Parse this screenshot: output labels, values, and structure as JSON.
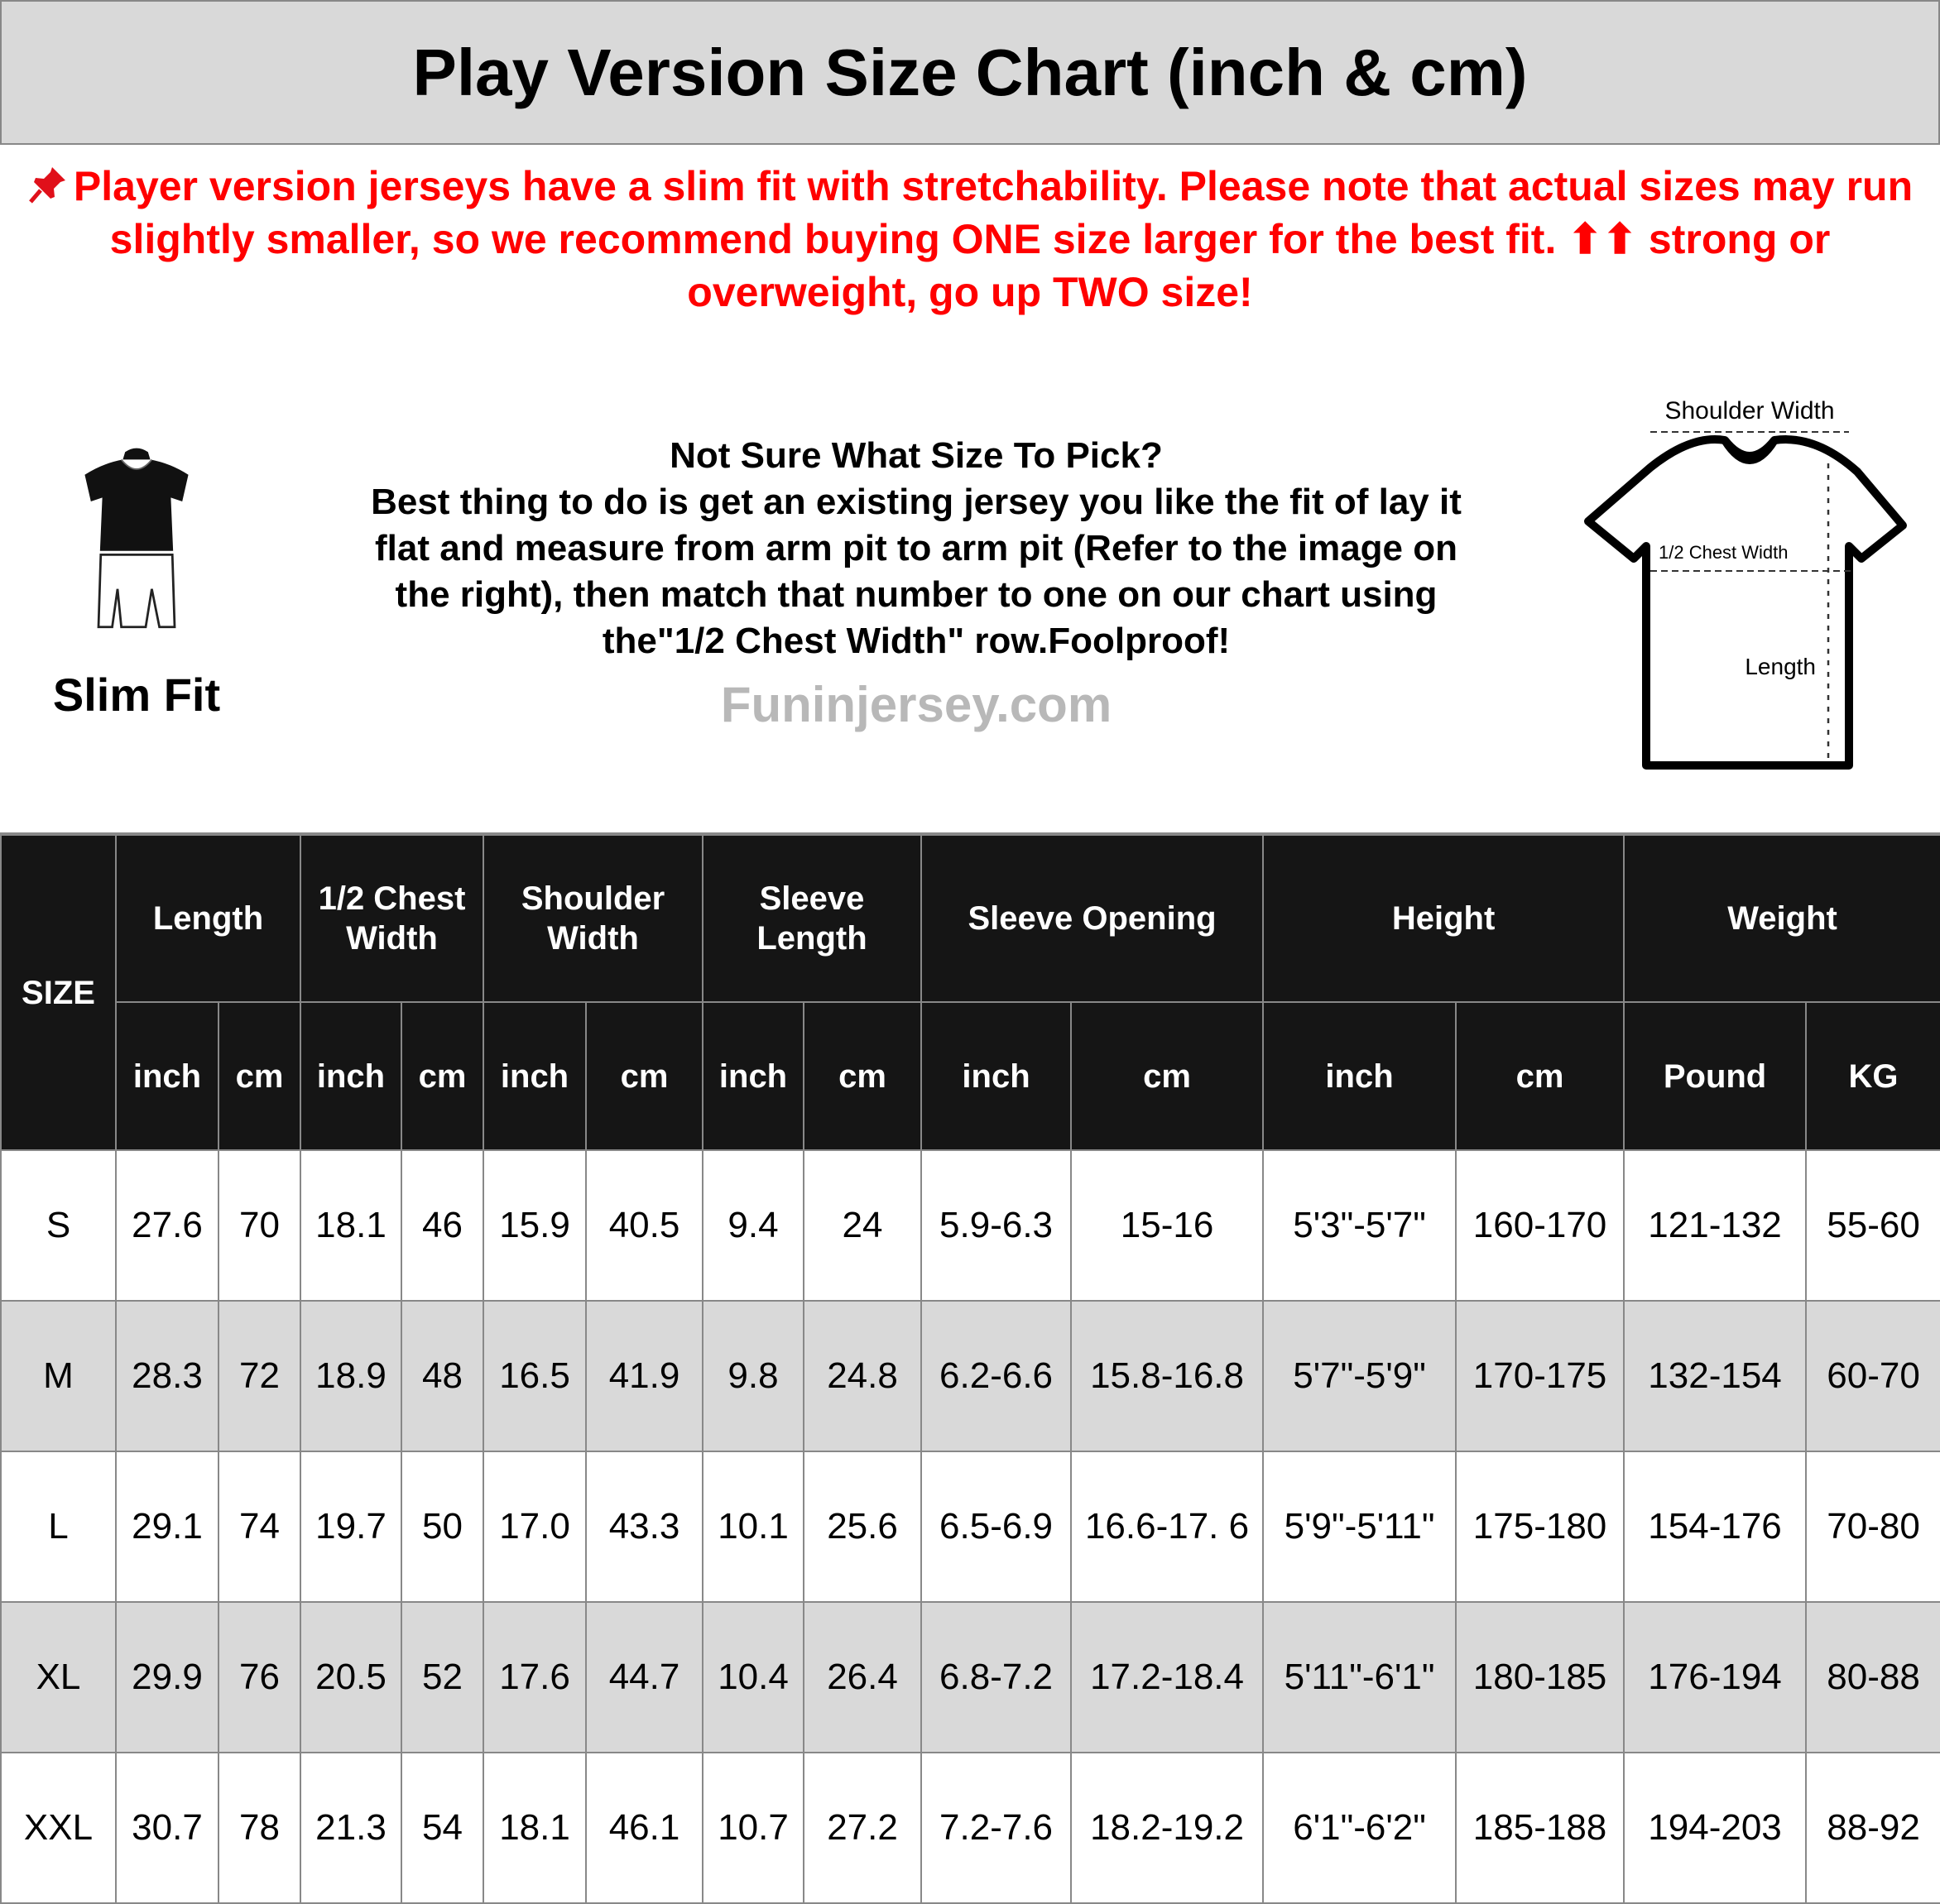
{
  "title": "Play Version Size Chart (inch & cm)",
  "notice": {
    "icon": "pushpin-icon",
    "color": "#ff0000",
    "lines": [
      "Player version jerseys have a slim fit with stretchability. Please note that actual sizes may run",
      "slightly smaller, so we recommend buying ONE size larger for the best fit. ⬆⬆ strong or overweight,",
      "go up TWO size!"
    ]
  },
  "fit_label": "Slim Fit",
  "guide": {
    "heading": "Not Sure What Size To Pick?",
    "lines": [
      "Best thing to do is get an existing jersey you like the fit of lay it",
      "flat and measure from arm pit to arm pit (Refer to the image on",
      "the right), then match that number to one on our chart using",
      "the\"1/2 Chest Width\" row.Foolproof!"
    ]
  },
  "diagram": {
    "shoulder": "Shoulder Width",
    "chest": "1/2 Chest Width",
    "length": "Length"
  },
  "watermark": "Funinjersey.com",
  "table": {
    "size_header": "SIZE",
    "groups": [
      "Length",
      "1/2 Chest Width",
      "Shoulder Width",
      "Sleeve Length",
      "Sleeve Opening",
      "Height",
      "Weight"
    ],
    "units": [
      "inch",
      "cm",
      "inch",
      "cm",
      "inch",
      "cm",
      "inch",
      "cm",
      "inch",
      "cm",
      "inch",
      "cm",
      "Pound",
      "KG"
    ],
    "rows": [
      [
        "S",
        "27.6",
        "70",
        "18.1",
        "46",
        "15.9",
        "40.5",
        "9.4",
        "24",
        "5.9-6.3",
        "15-16",
        "5'3\"-5'7\"",
        "160-170",
        "121-132",
        "55-60"
      ],
      [
        "M",
        "28.3",
        "72",
        "18.9",
        "48",
        "16.5",
        "41.9",
        "9.8",
        "24.8",
        "6.2-6.6",
        "15.8-16.8",
        "5'7\"-5'9\"",
        "170-175",
        "132-154",
        "60-70"
      ],
      [
        "L",
        "29.1",
        "74",
        "19.7",
        "50",
        "17.0",
        "43.3",
        "10.1",
        "25.6",
        "6.5-6.9",
        "16.6-17. 6",
        "5'9\"-5'11\"",
        "175-180",
        "154-176",
        "70-80"
      ],
      [
        "XL",
        "29.9",
        "76",
        "20.5",
        "52",
        "17.6",
        "44.7",
        "10.4",
        "26.4",
        "6.8-7.2",
        "17.2-18.4",
        "5'11\"-6'1\"",
        "180-185",
        "176-194",
        "80-88"
      ],
      [
        "XXL",
        "30.7",
        "78",
        "21.3",
        "54",
        "18.1",
        "46.1",
        "10.7",
        "27.2",
        "7.2-7.6",
        "18.2-19.2",
        "6'1\"-6'2\"",
        "185-188",
        "194-203",
        "88-92"
      ]
    ]
  }
}
